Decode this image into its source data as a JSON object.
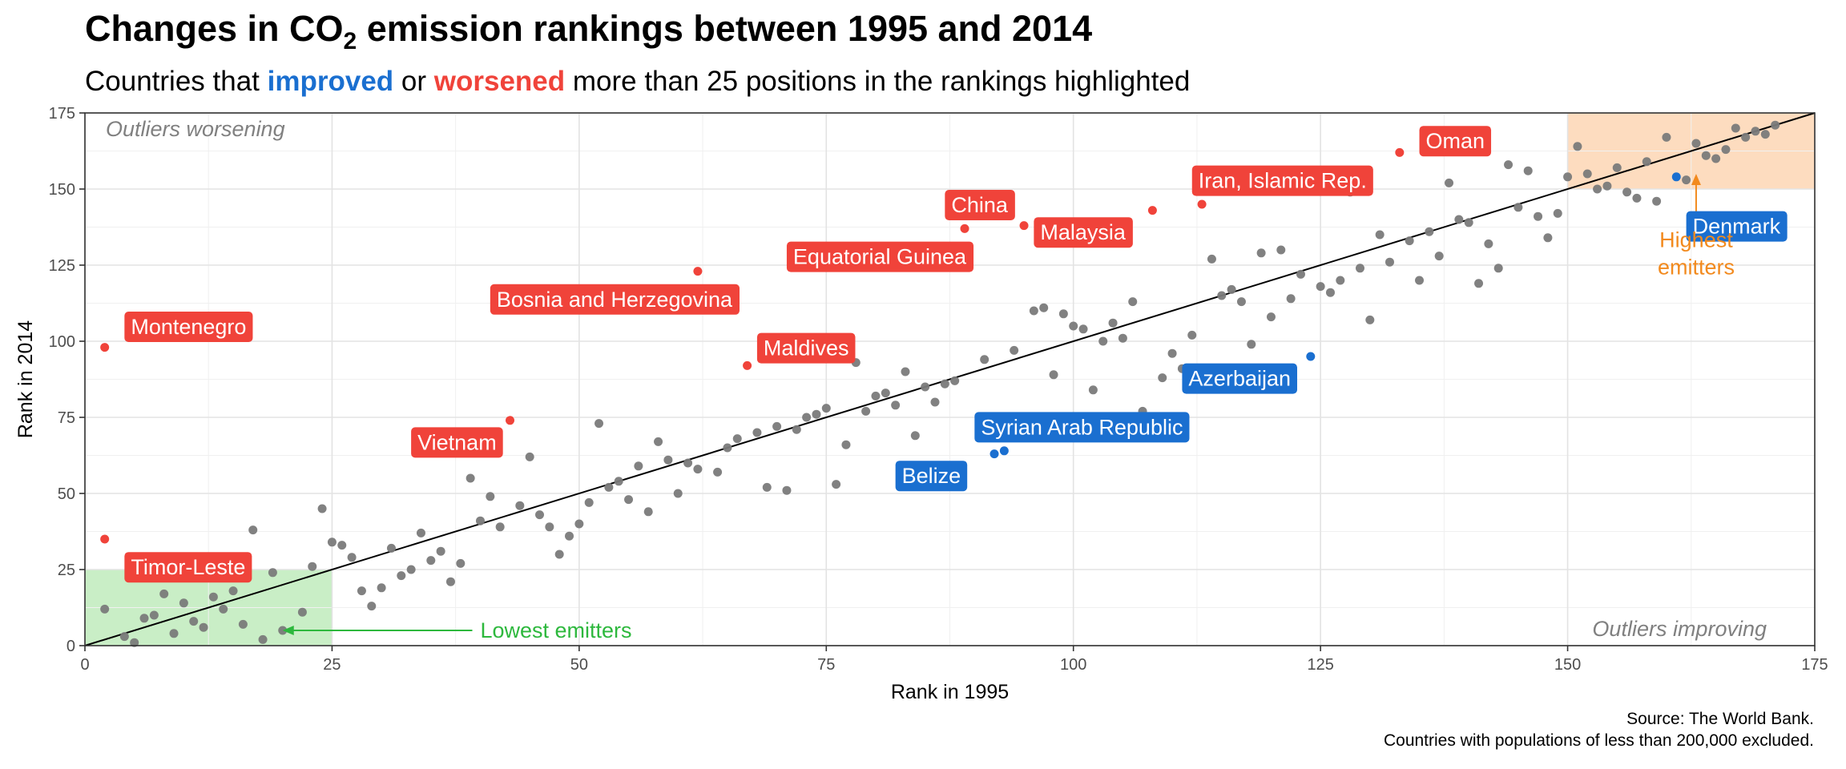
{
  "title_prefix": "Changes in CO",
  "title_sub": "2",
  "title_suffix": " emission rankings between 1995 and 2014",
  "subtitle": {
    "part1": "Countries that ",
    "improved": "improved",
    "part2": " or ",
    "worsened": "worsened",
    "part3": " more than 25 positions in the rankings highlighted"
  },
  "caption": {
    "line1": "Source: The World Bank.",
    "line2": "Countries with populations of less than 200,000 excluded."
  },
  "colors": {
    "improved": "#1a6fd0",
    "worsened": "#f0433a",
    "other": "#7a7a7a",
    "low_region": "#c9eec6",
    "low_text": "#2db83d",
    "high_region": "#fddcbf",
    "high_text": "#f28a1e"
  },
  "chart_data": {
    "type": "scatter",
    "xlabel": "Rank in 1995",
    "ylabel": "Rank in 2014",
    "xlim": [
      0,
      175
    ],
    "ylim": [
      0,
      175
    ],
    "xticks": [
      "0",
      "25",
      "50",
      "75",
      "100",
      "125",
      "150",
      "175"
    ],
    "yticks": [
      "0",
      "25",
      "50",
      "75",
      "100",
      "125",
      "150",
      "175"
    ],
    "grid": true,
    "reference_line": "y = x",
    "corner_notes": {
      "top_left": "Outliers worsening",
      "bottom_right": "Outliers improving"
    },
    "regions": [
      {
        "name": "Lowest emitters",
        "x": [
          0,
          25
        ],
        "y": [
          0,
          25
        ],
        "label_x": 40,
        "label_y": 5,
        "arrow_to": [
          20,
          5
        ]
      },
      {
        "name": "Highest\nemitters",
        "x": [
          150,
          175
        ],
        "y": [
          150,
          175
        ],
        "label_x": 163,
        "label_y": 132,
        "arrow_to": [
          163,
          155
        ]
      }
    ],
    "worsened": [
      {
        "x": 2,
        "y": 98,
        "label": "Montenegro",
        "lx": 4,
        "ly": 105
      },
      {
        "x": 2,
        "y": 35,
        "label": "Timor-Leste",
        "lx": 4,
        "ly": 26
      },
      {
        "x": 43,
        "y": 74,
        "label": "Vietnam",
        "lx": 33,
        "ly": 67
      },
      {
        "x": 62,
        "y": 123,
        "label": "Bosnia and Herzegovina",
        "lx": 41,
        "ly": 114
      },
      {
        "x": 67,
        "y": 92,
        "label": "Maldives",
        "lx": 68,
        "ly": 98
      },
      {
        "x": 89,
        "y": 137,
        "label": "Equatorial Guinea",
        "lx": 71,
        "ly": 128
      },
      {
        "x": 95,
        "y": 138,
        "label": "China",
        "lx": 87,
        "ly": 145
      },
      {
        "x": 108,
        "y": 143,
        "label": "Malaysia",
        "lx": 96,
        "ly": 136
      },
      {
        "x": 113,
        "y": 145,
        "label": "Iran, Islamic Rep.",
        "lx": 112,
        "ly": 153
      },
      {
        "x": 133,
        "y": 162,
        "label": "Oman",
        "lx": 135,
        "ly": 166
      }
    ],
    "improved": [
      {
        "x": 92,
        "y": 63,
        "label": "Belize",
        "lx": 82,
        "ly": 56
      },
      {
        "x": 93,
        "y": 64,
        "label": "Syrian Arab Republic",
        "lx": 90,
        "ly": 72
      },
      {
        "x": 124,
        "y": 95,
        "label": "Azerbaijan",
        "lx": 111,
        "ly": 88
      },
      {
        "x": 161,
        "y": 154,
        "label": "Denmark",
        "lx": 162,
        "ly": 138
      }
    ],
    "others": [
      [
        2,
        12
      ],
      [
        4,
        3
      ],
      [
        5,
        1
      ],
      [
        6,
        9
      ],
      [
        7,
        10
      ],
      [
        8,
        17
      ],
      [
        9,
        4
      ],
      [
        10,
        14
      ],
      [
        11,
        8
      ],
      [
        12,
        6
      ],
      [
        13,
        16
      ],
      [
        14,
        12
      ],
      [
        15,
        18
      ],
      [
        16,
        7
      ],
      [
        17,
        38
      ],
      [
        18,
        2
      ],
      [
        19,
        24
      ],
      [
        20,
        5
      ],
      [
        22,
        11
      ],
      [
        23,
        26
      ],
      [
        24,
        45
      ],
      [
        25,
        34
      ],
      [
        26,
        33
      ],
      [
        27,
        29
      ],
      [
        28,
        18
      ],
      [
        29,
        13
      ],
      [
        30,
        19
      ],
      [
        31,
        32
      ],
      [
        32,
        23
      ],
      [
        33,
        25
      ],
      [
        34,
        37
      ],
      [
        35,
        28
      ],
      [
        36,
        31
      ],
      [
        37,
        21
      ],
      [
        38,
        27
      ],
      [
        39,
        55
      ],
      [
        40,
        41
      ],
      [
        41,
        49
      ],
      [
        42,
        39
      ],
      [
        44,
        46
      ],
      [
        45,
        62
      ],
      [
        46,
        43
      ],
      [
        47,
        39
      ],
      [
        48,
        30
      ],
      [
        49,
        36
      ],
      [
        50,
        40
      ],
      [
        51,
        47
      ],
      [
        52,
        73
      ],
      [
        53,
        52
      ],
      [
        54,
        54
      ],
      [
        55,
        48
      ],
      [
        56,
        59
      ],
      [
        57,
        44
      ],
      [
        58,
        67
      ],
      [
        59,
        61
      ],
      [
        60,
        50
      ],
      [
        61,
        60
      ],
      [
        62,
        58
      ],
      [
        64,
        57
      ],
      [
        65,
        65
      ],
      [
        66,
        68
      ],
      [
        68,
        70
      ],
      [
        69,
        52
      ],
      [
        70,
        72
      ],
      [
        71,
        51
      ],
      [
        72,
        71
      ],
      [
        73,
        75
      ],
      [
        74,
        76
      ],
      [
        75,
        78
      ],
      [
        76,
        53
      ],
      [
        77,
        66
      ],
      [
        78,
        93
      ],
      [
        79,
        77
      ],
      [
        80,
        82
      ],
      [
        81,
        83
      ],
      [
        82,
        79
      ],
      [
        83,
        90
      ],
      [
        84,
        69
      ],
      [
        85,
        85
      ],
      [
        86,
        80
      ],
      [
        87,
        86
      ],
      [
        88,
        87
      ],
      [
        91,
        94
      ],
      [
        94,
        97
      ],
      [
        96,
        110
      ],
      [
        97,
        111
      ],
      [
        98,
        89
      ],
      [
        99,
        109
      ],
      [
        100,
        105
      ],
      [
        101,
        104
      ],
      [
        102,
        84
      ],
      [
        103,
        100
      ],
      [
        104,
        106
      ],
      [
        105,
        101
      ],
      [
        106,
        113
      ],
      [
        107,
        77
      ],
      [
        109,
        88
      ],
      [
        110,
        96
      ],
      [
        111,
        91
      ],
      [
        112,
        102
      ],
      [
        114,
        127
      ],
      [
        115,
        115
      ],
      [
        116,
        117
      ],
      [
        117,
        113
      ],
      [
        118,
        99
      ],
      [
        119,
        129
      ],
      [
        120,
        108
      ],
      [
        121,
        130
      ],
      [
        122,
        114
      ],
      [
        123,
        122
      ],
      [
        125,
        118
      ],
      [
        126,
        116
      ],
      [
        127,
        120
      ],
      [
        128,
        149
      ],
      [
        129,
        124
      ],
      [
        130,
        107
      ],
      [
        131,
        135
      ],
      [
        132,
        126
      ],
      [
        134,
        133
      ],
      [
        135,
        120
      ],
      [
        136,
        136
      ],
      [
        137,
        128
      ],
      [
        138,
        152
      ],
      [
        139,
        140
      ],
      [
        140,
        139
      ],
      [
        141,
        119
      ],
      [
        142,
        132
      ],
      [
        143,
        124
      ],
      [
        144,
        158
      ],
      [
        145,
        144
      ],
      [
        146,
        156
      ],
      [
        147,
        141
      ],
      [
        148,
        134
      ],
      [
        149,
        142
      ],
      [
        150,
        154
      ],
      [
        151,
        164
      ],
      [
        152,
        155
      ],
      [
        153,
        150
      ],
      [
        154,
        151
      ],
      [
        155,
        157
      ],
      [
        156,
        149
      ],
      [
        157,
        147
      ],
      [
        158,
        159
      ],
      [
        159,
        146
      ],
      [
        160,
        167
      ],
      [
        162,
        153
      ],
      [
        163,
        165
      ],
      [
        164,
        161
      ],
      [
        165,
        160
      ],
      [
        166,
        163
      ],
      [
        167,
        170
      ],
      [
        168,
        167
      ],
      [
        169,
        169
      ],
      [
        170,
        168
      ],
      [
        171,
        171
      ]
    ]
  }
}
